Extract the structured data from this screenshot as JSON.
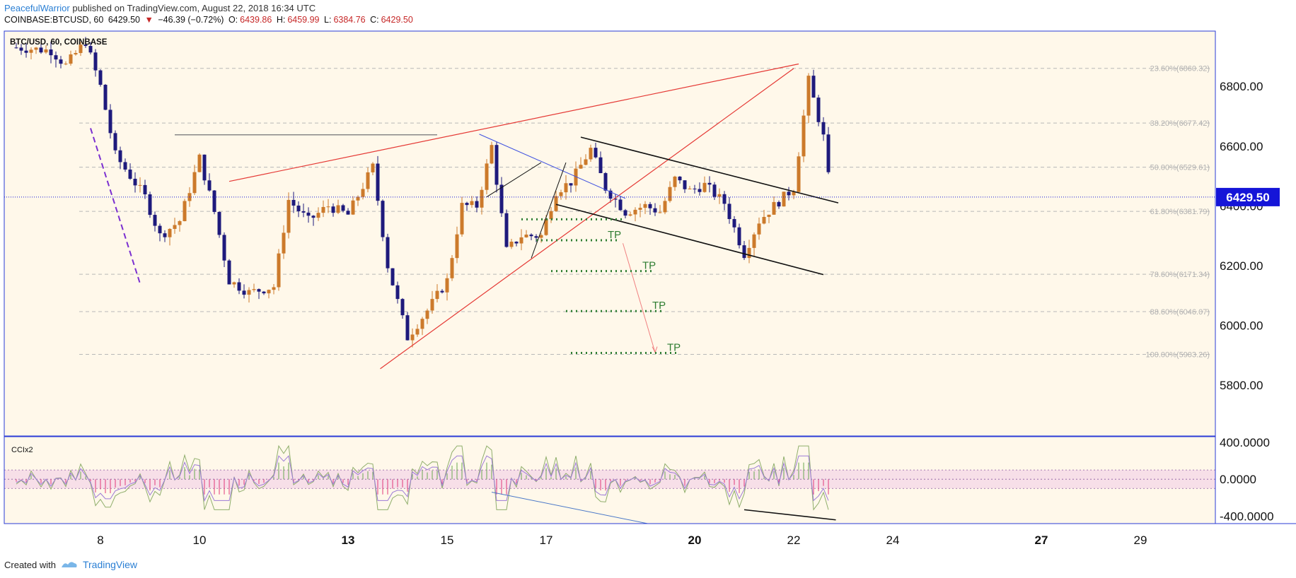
{
  "header": {
    "author": "PeacefulWarrior",
    "published_text": "published on TradingView.com, August 22, 2018 16:34 UTC",
    "symbol_line": "COINBASE:BTCUSD, 60",
    "last": "6429.50",
    "change_arrow": "▼",
    "change": "−46.39 (−0.72%)",
    "o_label": "O:",
    "o_value": "6439.86",
    "h_label": "H:",
    "h_value": "6459.99",
    "l_label": "L:",
    "l_value": "6384.76",
    "c_label": "C:",
    "c_value": "6429.50"
  },
  "footer": {
    "created_with": "Created with",
    "brand": "TradingView"
  },
  "colors": {
    "background": "#fff8ea",
    "frame": "#2a3bd6",
    "candle_up": "#cc7a2b",
    "candle_down": "#1e1a7c",
    "red_line": "#e53935",
    "blue_line": "#3f51e0",
    "tp_green": "#2e7d32",
    "price_tag": "#1515d8"
  },
  "chart_data": {
    "type": "candlestick",
    "title": "BTC/USD, 60, COINBASE",
    "x_ticks": [
      {
        "label": "8",
        "bold": false
      },
      {
        "label": "10",
        "bold": false
      },
      {
        "label": "13",
        "bold": true
      },
      {
        "label": "15",
        "bold": false
      },
      {
        "label": "17",
        "bold": false
      },
      {
        "label": "20",
        "bold": true
      },
      {
        "label": "22",
        "bold": false
      },
      {
        "label": "24",
        "bold": false
      },
      {
        "label": "27",
        "bold": true
      },
      {
        "label": "29",
        "bold": false
      }
    ],
    "y_ticks": [
      "6800.00",
      "6600.00",
      "6400.00",
      "6200.00",
      "6000.00",
      "5800.00"
    ],
    "ylim": [
      5630,
      6985
    ],
    "last_price": "6429.50",
    "last_price_value": 6429.5,
    "fib_levels": [
      {
        "label": "23.60%(6860.32)",
        "value": 6860.32
      },
      {
        "label": "38.20%(6677.42)",
        "value": 6677.42
      },
      {
        "label": "50.00%(6529.61)",
        "value": 6529.61
      },
      {
        "label": "61.80%(6381.79)",
        "value": 6381.79
      },
      {
        "label": "78.60%(6171.34)",
        "value": 6171.34
      },
      {
        "label": "88.60%(6046.07)",
        "value": 6046.07
      },
      {
        "label": "100.00%(5903.26)",
        "value": 5903.26
      }
    ],
    "tp_labels": [
      "TP",
      "TP",
      "TP",
      "TP"
    ],
    "tp_levels": [
      6285,
      6182,
      6048,
      5908
    ],
    "close_path": [
      [
        6.3,
        6930
      ],
      [
        7.0,
        6920
      ],
      [
        7.3,
        6870
      ],
      [
        7.7,
        6950
      ],
      [
        8.0,
        6800
      ],
      [
        8.3,
        6570
      ],
      [
        8.6,
        6500
      ],
      [
        8.9,
        6430
      ],
      [
        9.2,
        6300
      ],
      [
        9.6,
        6350
      ],
      [
        10.0,
        6560
      ],
      [
        10.3,
        6380
      ],
      [
        10.6,
        6150
      ],
      [
        11.0,
        6110
      ],
      [
        11.5,
        6130
      ],
      [
        11.8,
        6420
      ],
      [
        12.2,
        6350
      ],
      [
        12.6,
        6400
      ],
      [
        13.0,
        6370
      ],
      [
        13.5,
        6530
      ],
      [
        13.8,
        6200
      ],
      [
        14.2,
        5960
      ],
      [
        14.6,
        6050
      ],
      [
        15.0,
        6150
      ],
      [
        15.3,
        6400
      ],
      [
        15.6,
        6400
      ],
      [
        15.9,
        6600
      ],
      [
        16.2,
        6250
      ],
      [
        16.5,
        6300
      ],
      [
        16.9,
        6300
      ],
      [
        17.2,
        6450
      ],
      [
        17.5,
        6480
      ],
      [
        17.9,
        6590
      ],
      [
        18.2,
        6460
      ],
      [
        18.6,
        6380
      ],
      [
        19.0,
        6400
      ],
      [
        19.3,
        6380
      ],
      [
        19.6,
        6490
      ],
      [
        19.9,
        6450
      ],
      [
        20.2,
        6470
      ],
      [
        20.6,
        6410
      ],
      [
        21.0,
        6240
      ],
      [
        21.3,
        6350
      ],
      [
        21.6,
        6400
      ],
      [
        22.0,
        6460
      ],
      [
        22.3,
        6820
      ],
      [
        22.6,
        6630
      ],
      [
        22.75,
        6429.5
      ]
    ],
    "cci_ticks": [
      "400.0000",
      "0.0000",
      "-400.0000"
    ],
    "cci_ylim": [
      -480,
      460
    ],
    "cci_band": [
      -100,
      100
    ],
    "cci_label": "CCIx2"
  }
}
